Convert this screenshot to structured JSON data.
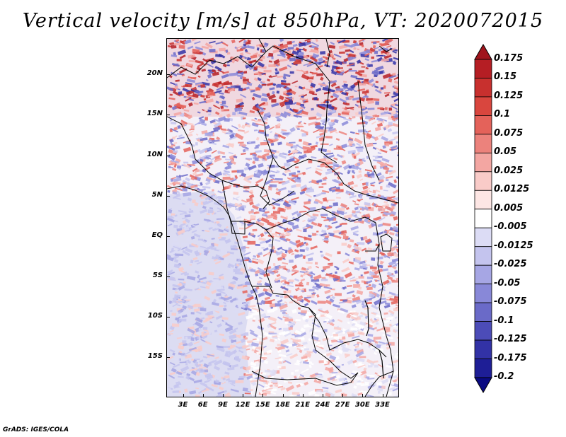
{
  "title": "Vertical velocity [m/s] at 850hPa, VT: 2020072015",
  "credit": "GrADS: IGES/COLA",
  "map": {
    "lat_labels": [
      "20N",
      "15N",
      "10N",
      "5N",
      "EQ",
      "5S",
      "10S",
      "15S"
    ],
    "lon_labels": [
      "3E",
      "6E",
      "9E",
      "12E",
      "15E",
      "18E",
      "21E",
      "24E",
      "27E",
      "30E",
      "33E"
    ],
    "lon_range": [
      0.5,
      35.5
    ],
    "lat_range": [
      -20,
      24.5
    ]
  },
  "colorbar": {
    "labels": [
      "0.175",
      "0.15",
      "0.125",
      "0.1",
      "0.075",
      "0.05",
      "0.025",
      "0.0125",
      "0.005",
      "-0.005",
      "-0.0125",
      "-0.025",
      "-0.05",
      "-0.075",
      "-0.1",
      "-0.125",
      "-0.175",
      "-0.2"
    ],
    "colors": [
      "#a0141c",
      "#b51e24",
      "#c8302e",
      "#d9463e",
      "#e4625a",
      "#ec827c",
      "#f3a6a2",
      "#f9cbc8",
      "#fde6e4",
      "#ffffff",
      "#dcdcf5",
      "#c4c4ee",
      "#a6a6e4",
      "#8888d8",
      "#6a6ac8",
      "#4c4cb8",
      "#3232a6",
      "#1e1e96",
      "#0a0a82"
    ]
  }
}
